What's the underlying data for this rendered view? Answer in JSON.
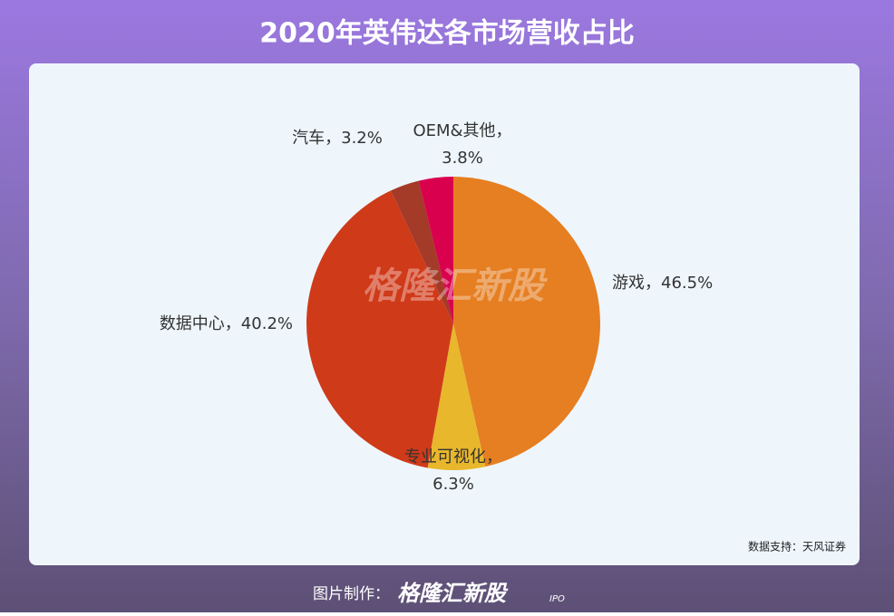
{
  "page": {
    "title": "2020年英伟达各市场营收占比",
    "source": "数据支持：天风证券",
    "footer_label": "图片制作：",
    "brand": "格隆汇新股",
    "brand_sub": "IPO",
    "watermark": "格隆汇新股"
  },
  "chart_data": {
    "type": "pie",
    "values": [
      46.5,
      6.3,
      40.2,
      3.2,
      3.8
    ],
    "value_labels": [
      [
        "游戏，46.5%"
      ],
      [
        "专业可视化，",
        "6.3%"
      ],
      [
        "数据中心，40.2%"
      ],
      [
        "汽车，3.2%"
      ],
      [
        "OEM&其他，",
        "3.8%"
      ]
    ],
    "colors": [
      "#e57f22",
      "#e8b72c",
      "#cf3a19",
      "#a43a28",
      "#d9004e"
    ]
  }
}
